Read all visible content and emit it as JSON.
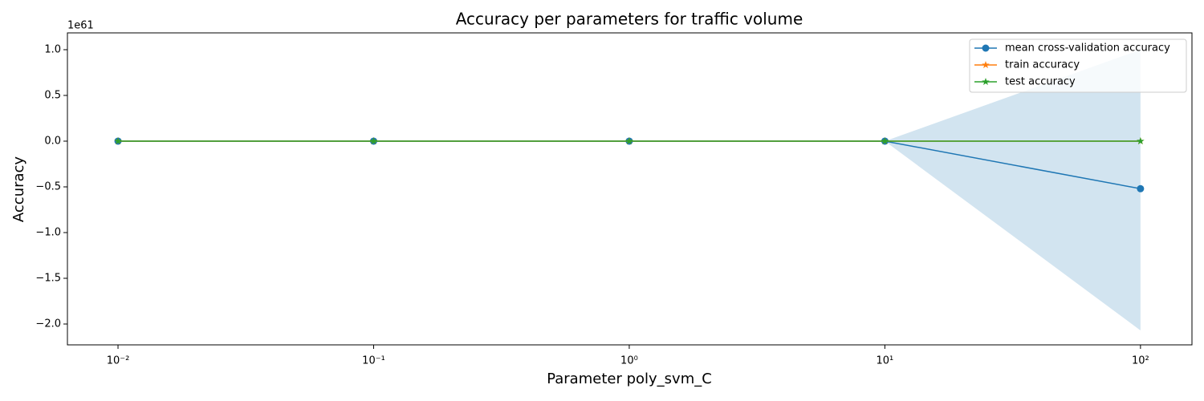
{
  "chart_data": {
    "type": "line",
    "title": "Accuracy per parameters for traffic volume",
    "x_label": "Parameter poly_svm_C",
    "y_label": "Accuracy",
    "y_offset_label": "1e61",
    "x_scale": "log",
    "x": [
      0.01,
      0.1,
      1,
      10,
      100
    ],
    "series": [
      {
        "name": "mean cross-validation accuracy",
        "color": "#1f77b4",
        "marker": "circle",
        "values": [
          0,
          0,
          0,
          0,
          -0.52
        ],
        "band_upper": [
          0,
          0,
          0,
          0,
          1.0
        ],
        "band_lower": [
          0,
          0,
          0,
          0,
          -2.07
        ]
      },
      {
        "name": "train accuracy",
        "color": "#ff7f0e",
        "marker": "star",
        "values": [
          0,
          0,
          0,
          0,
          0
        ]
      },
      {
        "name": "test accuracy",
        "color": "#2ca02c",
        "marker": "star",
        "values": [
          0,
          0,
          0,
          0,
          0
        ]
      }
    ],
    "xlim": [
      0.00634,
      159
    ],
    "xticks": [
      {
        "value": 0.01,
        "label": "10⁻²"
      },
      {
        "value": 0.1,
        "label": "10⁻¹"
      },
      {
        "value": 1,
        "label": "10⁰"
      },
      {
        "value": 10,
        "label": "10¹"
      },
      {
        "value": 100,
        "label": "10²"
      }
    ],
    "ylim": [
      -2.228,
      1.184
    ],
    "yticks": [
      {
        "value": -2.0,
        "label": "−2.0"
      },
      {
        "value": -1.5,
        "label": "−1.5"
      },
      {
        "value": -1.0,
        "label": "−1.0"
      },
      {
        "value": -0.5,
        "label": "−0.5"
      },
      {
        "value": 0,
        "label": "0.0"
      },
      0.5,
      {
        "value": 1.0,
        "label": "1.0"
      }
    ],
    "grid": false,
    "legend": "upper right"
  }
}
